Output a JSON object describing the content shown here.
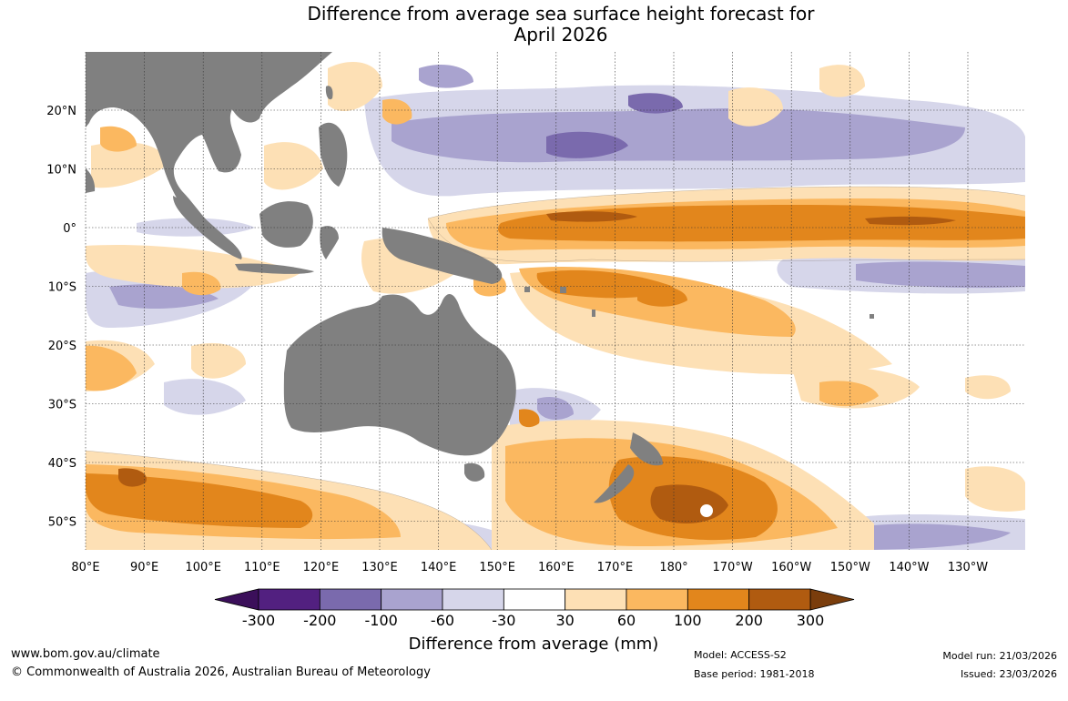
{
  "title": {
    "line1": "Difference from average sea surface height forecast for",
    "line2": "April 2026"
  },
  "latitudes": [
    {
      "label": "20°N",
      "value": 20
    },
    {
      "label": "10°N",
      "value": 10
    },
    {
      "label": "0°",
      "value": 0
    },
    {
      "label": "10°S",
      "value": -10
    },
    {
      "label": "20°S",
      "value": -20
    },
    {
      "label": "30°S",
      "value": -30
    },
    {
      "label": "40°S",
      "value": -40
    },
    {
      "label": "50°S",
      "value": -50
    }
  ],
  "longitudes": [
    {
      "label": "80°E",
      "value": 80
    },
    {
      "label": "90°E",
      "value": 90
    },
    {
      "label": "100°E",
      "value": 100
    },
    {
      "label": "110°E",
      "value": 110
    },
    {
      "label": "120°E",
      "value": 120
    },
    {
      "label": "130°E",
      "value": 130
    },
    {
      "label": "140°E",
      "value": 140
    },
    {
      "label": "150°E",
      "value": 150
    },
    {
      "label": "160°E",
      "value": 160
    },
    {
      "label": "170°E",
      "value": 170
    },
    {
      "label": "180°",
      "value": 180
    },
    {
      "label": "170°W",
      "value": 190
    },
    {
      "label": "160°W",
      "value": 200
    },
    {
      "label": "150°W",
      "value": 210
    },
    {
      "label": "140°W",
      "value": 220
    },
    {
      "label": "130°W",
      "value": 230
    }
  ],
  "colorbar": {
    "ticks": [
      "-300",
      "-200",
      "-100",
      "-60",
      "-30",
      "30",
      "60",
      "100",
      "200",
      "300"
    ],
    "colors": [
      "#522080",
      "#7a6aad",
      "#a9a3cf",
      "#d6d6ea",
      "#ffffff",
      "#fde0b5",
      "#fbb860",
      "#e2861c",
      "#b05b10"
    ],
    "under_color": "#3b0f5a",
    "over_color": "#7a3d0c",
    "title": "Difference from average (mm)"
  },
  "colors": {
    "land": "#808080",
    "grid": "#333333"
  },
  "footer": {
    "website": "www.bom.gov.au/climate",
    "copyright": "© Commonwealth of Australia 2026, Australian Bureau of Meteorology",
    "model": "Model: ACCESS-S2",
    "base_period": "Base period: 1981-2018",
    "model_run": "Model run: 21/03/2026",
    "issued": "Issued: 23/03/2026"
  }
}
